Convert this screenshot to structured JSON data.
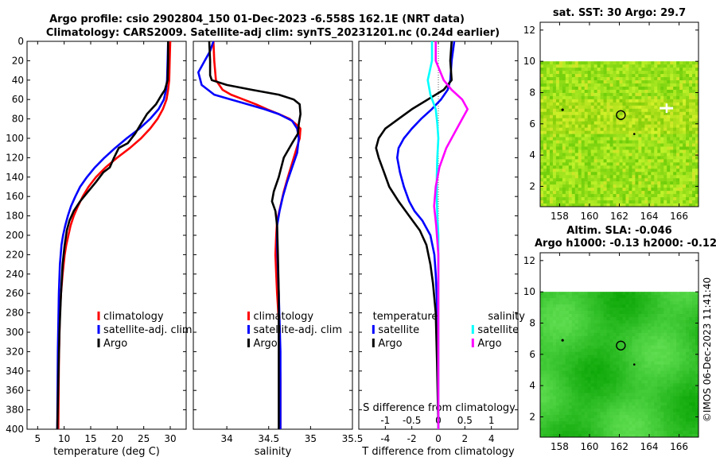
{
  "title": {
    "line1": "Argo profile: csio 2902804_150 01-Dec-2023 -6.558S 162.1E (NRT data)",
    "line2": "Climatology: CARS2009. Satellite-adj clim: synTS_20231201.nc (0.24d earlier)"
  },
  "timestamp": "©IMOS 06-Dec-2023 11:41:40",
  "colors": {
    "clim": "#ff0000",
    "sat": "#0000ff",
    "argo": "#000000",
    "sal_sat": "#00ffff",
    "sal_argo": "#ff00ff"
  },
  "chart_data": [
    {
      "type": "line",
      "name": "temperature-profile",
      "xlabel": "temperature (deg C)",
      "ylabel": "",
      "xlim": [
        3,
        33
      ],
      "ylim": [
        0,
        400
      ],
      "xticks": [
        "5",
        "10",
        "15",
        "20",
        "25",
        "30"
      ],
      "xtick_values": [
        5,
        10,
        15,
        20,
        25,
        30
      ],
      "yticks": [
        "0",
        "20",
        "40",
        "60",
        "80",
        "100",
        "120",
        "140",
        "160",
        "180",
        "200",
        "220",
        "240",
        "260",
        "280",
        "300",
        "320",
        "340",
        "360",
        "380",
        "400"
      ],
      "ytick_values": [
        0,
        20,
        40,
        60,
        80,
        100,
        120,
        140,
        160,
        180,
        200,
        220,
        240,
        260,
        280,
        300,
        320,
        340,
        360,
        380,
        400
      ],
      "legend": [
        {
          "label": "climatology",
          "color": "#ff0000"
        },
        {
          "label": "satellite-adj. clim",
          "color": "#0000ff"
        },
        {
          "label": "Argo",
          "color": "#000000"
        }
      ],
      "series": [
        {
          "name": "climatology",
          "color": "#ff0000",
          "x": [
            30.0,
            29.9,
            29.8,
            29.6,
            29.3,
            28.6,
            27.6,
            26.2,
            24.5,
            22.4,
            20.0,
            17.8,
            16.0,
            14.6,
            13.5,
            12.6,
            11.8,
            11.2,
            10.8,
            10.4,
            10.1,
            9.7,
            9.4,
            9.2,
            9.0,
            8.9
          ],
          "y": [
            0,
            20,
            40,
            50,
            60,
            70,
            80,
            90,
            100,
            110,
            120,
            130,
            140,
            150,
            160,
            170,
            180,
            190,
            200,
            210,
            220,
            240,
            260,
            280,
            330,
            400
          ]
        },
        {
          "name": "satellite-adj. clim",
          "color": "#0000ff",
          "x": [
            29.6,
            29.5,
            29.4,
            29.2,
            28.8,
            27.8,
            26.2,
            24.2,
            21.8,
            19.6,
            17.6,
            15.8,
            14.3,
            13.0,
            12.1,
            11.3,
            10.7,
            10.2,
            9.8,
            9.5,
            9.2,
            9.0,
            8.8,
            8.7
          ],
          "y": [
            0,
            20,
            40,
            50,
            60,
            70,
            80,
            90,
            100,
            110,
            120,
            130,
            140,
            150,
            160,
            170,
            180,
            190,
            200,
            210,
            230,
            260,
            320,
            400
          ]
        },
        {
          "name": "Argo",
          "color": "#000000",
          "x": [
            29.6,
            29.6,
            29.5,
            29.0,
            28.4,
            27.3,
            25.6,
            24.5,
            23.4,
            22.0,
            20.3,
            19.4,
            18.6,
            17.4,
            16.0,
            14.5,
            13.0,
            11.8,
            11.0,
            10.5,
            10.1,
            9.7,
            9.4,
            9.1,
            8.9,
            8.7
          ],
          "y": [
            0,
            20,
            40,
            50,
            55,
            65,
            75,
            85,
            95,
            105,
            110,
            120,
            130,
            135,
            145,
            155,
            165,
            175,
            185,
            195,
            210,
            230,
            260,
            300,
            350,
            400
          ]
        }
      ]
    },
    {
      "type": "line",
      "name": "salinity-profile",
      "xlabel": "salinity",
      "xlim": [
        33.6,
        35.5
      ],
      "ylim": [
        0,
        400
      ],
      "xticks": [
        "34",
        "34.5",
        "35",
        "35.5"
      ],
      "xtick_values": [
        34,
        34.5,
        35,
        35.5
      ],
      "legend": [
        {
          "label": "climatology",
          "color": "#ff0000"
        },
        {
          "label": "satellite-adj. clim",
          "color": "#0000ff"
        },
        {
          "label": "Argo",
          "color": "#000000"
        }
      ],
      "series": [
        {
          "name": "climatology",
          "color": "#ff0000",
          "x": [
            33.84,
            33.85,
            33.87,
            33.95,
            34.05,
            34.2,
            34.35,
            34.48,
            34.62,
            34.75,
            34.82,
            34.88,
            34.87,
            34.8,
            34.73,
            34.68,
            34.64,
            34.6,
            34.59,
            34.58,
            34.59,
            34.6,
            34.63,
            34.64,
            34.64
          ],
          "y": [
            0,
            20,
            40,
            50,
            55,
            60,
            65,
            70,
            75,
            80,
            85,
            90,
            100,
            120,
            140,
            155,
            170,
            185,
            200,
            220,
            240,
            260,
            300,
            350,
            400
          ]
        },
        {
          "name": "satellite-adj. clim",
          "color": "#0000ff",
          "x": [
            33.84,
            33.8,
            33.66,
            33.7,
            33.85,
            34.05,
            34.25,
            34.45,
            34.62,
            34.78,
            34.84,
            34.86,
            34.84,
            34.78,
            34.72,
            34.67,
            34.63,
            34.6,
            34.6,
            34.62,
            34.64,
            34.64
          ],
          "y": [
            0,
            10,
            32,
            45,
            55,
            60,
            65,
            70,
            75,
            82,
            90,
            100,
            115,
            130,
            145,
            160,
            175,
            190,
            210,
            260,
            320,
            400
          ]
        },
        {
          "name": "Argo",
          "color": "#000000",
          "x": [
            33.79,
            33.8,
            33.8,
            33.82,
            34.0,
            34.3,
            34.62,
            34.8,
            34.87,
            34.88,
            34.86,
            34.85,
            34.78,
            34.68,
            34.62,
            34.56,
            34.54,
            34.58,
            34.6,
            34.61,
            34.62,
            34.62,
            34.62
          ],
          "y": [
            0,
            20,
            35,
            40,
            45,
            50,
            55,
            60,
            65,
            75,
            85,
            95,
            105,
            120,
            140,
            155,
            165,
            175,
            190,
            220,
            260,
            330,
            400
          ]
        }
      ]
    },
    {
      "type": "line",
      "name": "difference-profile",
      "xlabel": "T difference from climatology",
      "xlabel_top": "S difference from climatology",
      "xlim": [
        -6,
        6
      ],
      "ylim": [
        0,
        400
      ],
      "xticks": [
        "-4",
        "-2",
        "0",
        "2",
        "4"
      ],
      "xtick_values": [
        -4,
        -2,
        0,
        2,
        4
      ],
      "sticks": [
        "-1",
        "-0.5",
        "0",
        "0.5",
        "1"
      ],
      "stick_values": [
        -1,
        -0.5,
        0,
        0.5,
        1
      ],
      "slim": [
        -1.5,
        1.5
      ],
      "legend_headers": [
        "temperature",
        "salinity"
      ],
      "legend": [
        {
          "label": "satellite",
          "color": "#0000ff"
        },
        {
          "label": "Argo",
          "color": "#000000"
        },
        {
          "label": "satellite",
          "color": "#00ffff"
        },
        {
          "label": "Argo",
          "color": "#ff00ff"
        }
      ],
      "series": [
        {
          "name": "T satellite",
          "color": "#0000ff",
          "axis": "T",
          "x": [
            1.2,
            1.0,
            0.9,
            0.7,
            0.2,
            -0.5,
            -1.3,
            -2.0,
            -2.6,
            -3.0,
            -3.1,
            -2.9,
            -2.6,
            -2.2,
            -1.8,
            -1.2,
            -0.6,
            -0.3,
            -0.2,
            -0.1,
            -0.05,
            0
          ],
          "y": [
            0,
            20,
            40,
            50,
            60,
            70,
            80,
            90,
            100,
            110,
            120,
            135,
            150,
            165,
            175,
            185,
            200,
            220,
            240,
            270,
            320,
            400
          ]
        },
        {
          "name": "T Argo",
          "color": "#000000",
          "axis": "T",
          "x": [
            1.0,
            0.9,
            1.0,
            0.4,
            -0.8,
            -2.0,
            -3.0,
            -4.0,
            -4.5,
            -4.7,
            -4.5,
            -4.1,
            -3.7,
            -3.0,
            -2.2,
            -1.4,
            -0.9,
            -0.6,
            -0.4,
            -0.2,
            -0.1,
            0
          ],
          "y": [
            0,
            20,
            40,
            50,
            60,
            70,
            80,
            90,
            100,
            110,
            120,
            135,
            150,
            165,
            180,
            195,
            210,
            230,
            250,
            280,
            330,
            400
          ]
        },
        {
          "name": "S satellite",
          "color": "#00ffff",
          "axis": "S",
          "x": [
            -0.12,
            -0.12,
            -0.2,
            -0.15,
            -0.05,
            -0.02,
            0.0,
            -0.02,
            -0.03,
            -0.03,
            -0.02,
            0.0,
            0.0,
            0.0
          ],
          "y": [
            0,
            20,
            40,
            55,
            70,
            85,
            100,
            120,
            140,
            160,
            180,
            200,
            260,
            400
          ]
        },
        {
          "name": "S Argo",
          "color": "#ff00ff",
          "axis": "S",
          "x": [
            -0.05,
            -0.05,
            0.1,
            0.25,
            0.45,
            0.55,
            0.35,
            0.15,
            0.02,
            -0.05,
            -0.08,
            -0.04,
            0.0,
            0.0,
            0.0
          ],
          "y": [
            0,
            20,
            40,
            50,
            60,
            70,
            90,
            110,
            130,
            150,
            170,
            190,
            220,
            300,
            400
          ]
        }
      ]
    },
    {
      "type": "heatmap",
      "name": "sst-map",
      "title": "sat. SST: 30 Argo: 29.7",
      "xlim": [
        156.7,
        167.3
      ],
      "ylim": [
        0.7,
        12.5
      ],
      "xticks": [
        "158",
        "160",
        "162",
        "164",
        "166"
      ],
      "xtick_values": [
        158,
        160,
        162,
        164,
        166
      ],
      "yticks": [
        "2",
        "4",
        "6",
        "8",
        "10",
        "12"
      ],
      "ytick_values": [
        2,
        4,
        6,
        8,
        10,
        12
      ],
      "data_top": 10,
      "marker": {
        "lon": 162.1,
        "lat": 6.56
      }
    },
    {
      "type": "heatmap",
      "name": "sla-map",
      "title": "Altim. SLA: -0.046",
      "subtitle": "Argo h1000: -0.13 h2000: -0.12",
      "xlim": [
        156.7,
        167.3
      ],
      "ylim": [
        0.7,
        12.5
      ],
      "xticks": [
        "158",
        "160",
        "162",
        "164",
        "166"
      ],
      "xtick_values": [
        158,
        160,
        162,
        164,
        166
      ],
      "yticks": [
        "2",
        "4",
        "6",
        "8",
        "10",
        "12"
      ],
      "ytick_values": [
        2,
        4,
        6,
        8,
        10,
        12
      ],
      "data_top": 10,
      "marker": {
        "lon": 162.1,
        "lat": 6.56
      }
    }
  ]
}
